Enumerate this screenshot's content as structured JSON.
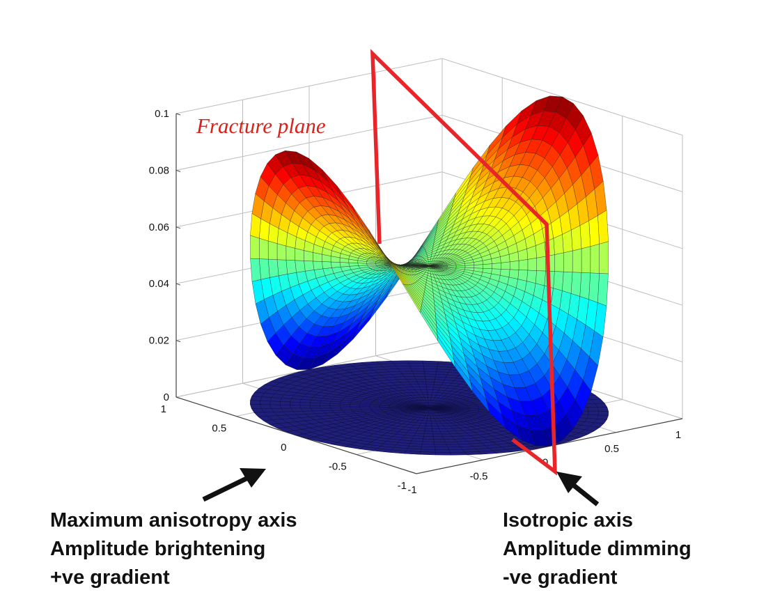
{
  "chart_data": {
    "type": "surface3d",
    "description_free": true,
    "z_ticks": [
      "0",
      "0.02",
      "0.04",
      "0.06",
      "0.08",
      "0.1"
    ],
    "zlim": [
      0,
      0.1
    ],
    "left_axis_ticks": [
      "1",
      "0.5",
      "0",
      "-0.5",
      "-1"
    ],
    "right_axis_ticks": [
      "-1",
      "-0.5",
      "0",
      "0.5",
      "1"
    ],
    "xlim": [
      -1,
      1
    ],
    "ylim": [
      -1,
      1
    ],
    "grid": true,
    "surface": {
      "formula": "0.05 + 0.05*r^2*cos(2*theta)",
      "radius": 1,
      "colormap": "jet"
    },
    "projection_disk": {
      "radius": 1,
      "z": 0,
      "color": "#1f1f7a"
    },
    "annotations": {
      "fracture_plane": "Fracture plane",
      "left": [
        "Maximum anisotropy axis",
        "Amplitude brightening",
        "+ve gradient"
      ],
      "right": [
        "Isotropic axis",
        "Amplitude dimming",
        "-ve gradient"
      ]
    },
    "colors": {
      "fracture_line": "#e8262a",
      "arrow": "#111111",
      "grid": "#bdbdbd"
    }
  }
}
